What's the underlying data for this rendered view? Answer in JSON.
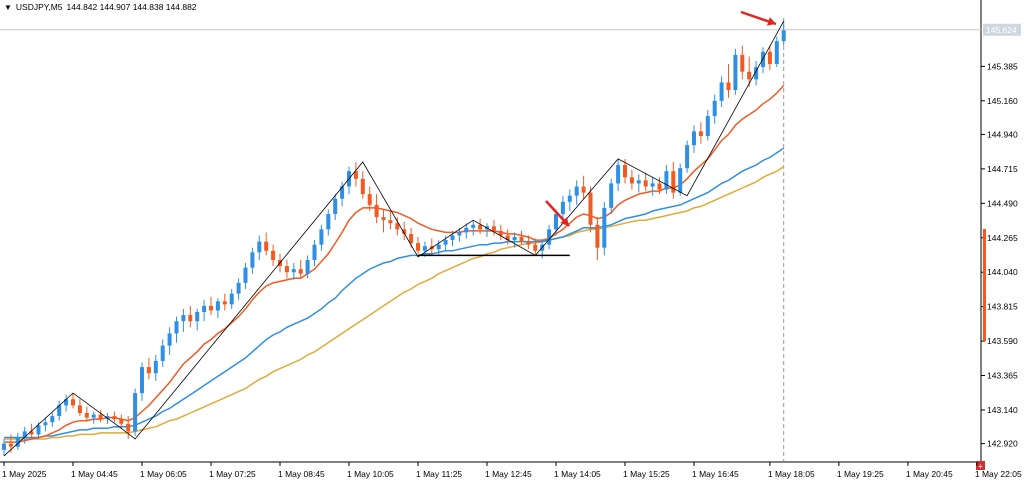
{
  "header": {
    "symbol": "USDJPY,M5",
    "ohlc": "144.842 144.907 144.838 144.882"
  },
  "colors": {
    "bull": "#2e8fe5",
    "bear": "#f25a22",
    "ema_fast": "#f25a22",
    "ema_mid": "#2e8fe5",
    "ema_slow": "#e2aa38",
    "zigzag": "#000000",
    "arrow": "#e52420",
    "price_label_bg": "#cfd7e0",
    "pin_bg": "#d32f2f"
  },
  "price_label": "145.624",
  "chart_data": {
    "type": "candlestick",
    "title": "USDJPY,M5",
    "ylim": [
      142.8,
      145.74
    ],
    "y_ticks": [
      "145.385",
      "145.160",
      "144.940",
      "144.715",
      "144.490",
      "144.265",
      "144.040",
      "143.815",
      "143.590",
      "143.365",
      "143.140",
      "142.920"
    ],
    "x_ticks": [
      "1 May 2025",
      "1 May 04:45",
      "1 May 06:05",
      "1 May 07:25",
      "1 May 08:45",
      "1 May 10:05",
      "1 May 11:25",
      "1 May 12:45",
      "1 May 14:05",
      "1 May 15:25",
      "1 May 16:45",
      "1 May 18:05",
      "1 May 19:25",
      "1 May 20:45",
      "1 May 22:05"
    ],
    "candles": [
      {
        "o": 142.88,
        "h": 142.95,
        "l": 142.84,
        "c": 142.92
      },
      {
        "o": 142.92,
        "h": 142.98,
        "l": 142.86,
        "c": 142.9
      },
      {
        "o": 142.9,
        "h": 142.99,
        "l": 142.88,
        "c": 142.96
      },
      {
        "o": 142.96,
        "h": 143.03,
        "l": 142.92,
        "c": 143.0
      },
      {
        "o": 143.0,
        "h": 143.05,
        "l": 142.96,
        "c": 142.98
      },
      {
        "o": 142.98,
        "h": 143.06,
        "l": 142.95,
        "c": 143.04
      },
      {
        "o": 143.04,
        "h": 143.09,
        "l": 143.0,
        "c": 143.06
      },
      {
        "o": 143.06,
        "h": 143.12,
        "l": 143.03,
        "c": 143.1
      },
      {
        "o": 143.1,
        "h": 143.2,
        "l": 143.07,
        "c": 143.17
      },
      {
        "o": 143.17,
        "h": 143.24,
        "l": 143.13,
        "c": 143.21
      },
      {
        "o": 143.21,
        "h": 143.25,
        "l": 143.15,
        "c": 143.17
      },
      {
        "o": 143.17,
        "h": 143.21,
        "l": 143.1,
        "c": 143.12
      },
      {
        "o": 143.12,
        "h": 143.16,
        "l": 143.07,
        "c": 143.09
      },
      {
        "o": 143.09,
        "h": 143.13,
        "l": 143.05,
        "c": 143.11
      },
      {
        "o": 143.11,
        "h": 143.14,
        "l": 143.06,
        "c": 143.08
      },
      {
        "o": 143.08,
        "h": 143.12,
        "l": 143.05,
        "c": 143.1
      },
      {
        "o": 143.1,
        "h": 143.13,
        "l": 143.06,
        "c": 143.08
      },
      {
        "o": 143.08,
        "h": 143.11,
        "l": 143.02,
        "c": 143.05
      },
      {
        "o": 143.05,
        "h": 143.1,
        "l": 142.95,
        "c": 143.0
      },
      {
        "o": 143.0,
        "h": 143.28,
        "l": 142.97,
        "c": 143.25
      },
      {
        "o": 143.25,
        "h": 143.45,
        "l": 143.2,
        "c": 143.42
      },
      {
        "o": 143.42,
        "h": 143.48,
        "l": 143.34,
        "c": 143.38
      },
      {
        "o": 143.38,
        "h": 143.5,
        "l": 143.33,
        "c": 143.46
      },
      {
        "o": 143.46,
        "h": 143.6,
        "l": 143.42,
        "c": 143.56
      },
      {
        "o": 143.56,
        "h": 143.68,
        "l": 143.5,
        "c": 143.64
      },
      {
        "o": 143.64,
        "h": 143.75,
        "l": 143.58,
        "c": 143.72
      },
      {
        "o": 143.72,
        "h": 143.8,
        "l": 143.65,
        "c": 143.76
      },
      {
        "o": 143.76,
        "h": 143.82,
        "l": 143.68,
        "c": 143.72
      },
      {
        "o": 143.72,
        "h": 143.8,
        "l": 143.66,
        "c": 143.78
      },
      {
        "o": 143.78,
        "h": 143.86,
        "l": 143.72,
        "c": 143.82
      },
      {
        "o": 143.82,
        "h": 143.88,
        "l": 143.76,
        "c": 143.79
      },
      {
        "o": 143.79,
        "h": 143.87,
        "l": 143.74,
        "c": 143.85
      },
      {
        "o": 143.85,
        "h": 143.9,
        "l": 143.79,
        "c": 143.83
      },
      {
        "o": 143.83,
        "h": 143.93,
        "l": 143.8,
        "c": 143.9
      },
      {
        "o": 143.9,
        "h": 144.0,
        "l": 143.86,
        "c": 143.97
      },
      {
        "o": 143.97,
        "h": 144.1,
        "l": 143.93,
        "c": 144.07
      },
      {
        "o": 144.07,
        "h": 144.2,
        "l": 144.03,
        "c": 144.17
      },
      {
        "o": 144.17,
        "h": 144.28,
        "l": 144.12,
        "c": 144.24
      },
      {
        "o": 144.24,
        "h": 144.3,
        "l": 144.15,
        "c": 144.18
      },
      {
        "o": 144.18,
        "h": 144.22,
        "l": 144.08,
        "c": 144.12
      },
      {
        "o": 144.12,
        "h": 144.16,
        "l": 144.04,
        "c": 144.08
      },
      {
        "o": 144.08,
        "h": 144.12,
        "l": 144.0,
        "c": 144.04
      },
      {
        "o": 144.04,
        "h": 144.1,
        "l": 143.99,
        "c": 144.06
      },
      {
        "o": 144.06,
        "h": 144.12,
        "l": 144.0,
        "c": 144.03
      },
      {
        "o": 144.03,
        "h": 144.15,
        "l": 144.0,
        "c": 144.12
      },
      {
        "o": 144.12,
        "h": 144.25,
        "l": 144.08,
        "c": 144.22
      },
      {
        "o": 144.22,
        "h": 144.35,
        "l": 144.18,
        "c": 144.32
      },
      {
        "o": 144.32,
        "h": 144.45,
        "l": 144.28,
        "c": 144.42
      },
      {
        "o": 144.42,
        "h": 144.55,
        "l": 144.38,
        "c": 144.52
      },
      {
        "o": 144.52,
        "h": 144.63,
        "l": 144.47,
        "c": 144.6
      },
      {
        "o": 144.6,
        "h": 144.73,
        "l": 144.55,
        "c": 144.7
      },
      {
        "o": 144.7,
        "h": 144.76,
        "l": 144.6,
        "c": 144.65
      },
      {
        "o": 144.65,
        "h": 144.7,
        "l": 144.52,
        "c": 144.55
      },
      {
        "o": 144.55,
        "h": 144.6,
        "l": 144.44,
        "c": 144.48
      },
      {
        "o": 144.48,
        "h": 144.55,
        "l": 144.36,
        "c": 144.4
      },
      {
        "o": 144.4,
        "h": 144.45,
        "l": 144.3,
        "c": 144.38
      },
      {
        "o": 144.38,
        "h": 144.44,
        "l": 144.32,
        "c": 144.36
      },
      {
        "o": 144.36,
        "h": 144.4,
        "l": 144.28,
        "c": 144.32
      },
      {
        "o": 144.32,
        "h": 144.37,
        "l": 144.25,
        "c": 144.29
      },
      {
        "o": 144.29,
        "h": 144.33,
        "l": 144.2,
        "c": 144.23
      },
      {
        "o": 144.23,
        "h": 144.27,
        "l": 144.16,
        "c": 144.18
      },
      {
        "o": 144.18,
        "h": 144.24,
        "l": 144.14,
        "c": 144.21
      },
      {
        "o": 144.21,
        "h": 144.26,
        "l": 144.15,
        "c": 144.19
      },
      {
        "o": 144.19,
        "h": 144.25,
        "l": 144.15,
        "c": 144.22
      },
      {
        "o": 144.22,
        "h": 144.28,
        "l": 144.18,
        "c": 144.25
      },
      {
        "o": 144.25,
        "h": 144.31,
        "l": 144.21,
        "c": 144.28
      },
      {
        "o": 144.28,
        "h": 144.33,
        "l": 144.24,
        "c": 144.3
      },
      {
        "o": 144.3,
        "h": 144.36,
        "l": 144.26,
        "c": 144.33
      },
      {
        "o": 144.33,
        "h": 144.38,
        "l": 144.28,
        "c": 144.35
      },
      {
        "o": 144.35,
        "h": 144.39,
        "l": 144.29,
        "c": 144.32
      },
      {
        "o": 144.32,
        "h": 144.36,
        "l": 144.27,
        "c": 144.34
      },
      {
        "o": 144.34,
        "h": 144.38,
        "l": 144.28,
        "c": 144.31
      },
      {
        "o": 144.31,
        "h": 144.35,
        "l": 144.25,
        "c": 144.28
      },
      {
        "o": 144.28,
        "h": 144.32,
        "l": 144.22,
        "c": 144.25
      },
      {
        "o": 144.25,
        "h": 144.3,
        "l": 144.2,
        "c": 144.27
      },
      {
        "o": 144.27,
        "h": 144.31,
        "l": 144.22,
        "c": 144.24
      },
      {
        "o": 144.24,
        "h": 144.28,
        "l": 144.19,
        "c": 144.22
      },
      {
        "o": 144.22,
        "h": 144.26,
        "l": 144.15,
        "c": 144.18
      },
      {
        "o": 144.18,
        "h": 144.25,
        "l": 144.13,
        "c": 144.22
      },
      {
        "o": 144.22,
        "h": 144.35,
        "l": 144.19,
        "c": 144.32
      },
      {
        "o": 144.32,
        "h": 144.45,
        "l": 144.28,
        "c": 144.42
      },
      {
        "o": 144.42,
        "h": 144.54,
        "l": 144.38,
        "c": 144.5
      },
      {
        "o": 144.5,
        "h": 144.58,
        "l": 144.44,
        "c": 144.54
      },
      {
        "o": 144.54,
        "h": 144.64,
        "l": 144.48,
        "c": 144.6
      },
      {
        "o": 144.6,
        "h": 144.67,
        "l": 144.52,
        "c": 144.56
      },
      {
        "o": 144.56,
        "h": 144.6,
        "l": 144.3,
        "c": 144.35
      },
      {
        "o": 144.35,
        "h": 144.4,
        "l": 144.12,
        "c": 144.2
      },
      {
        "o": 144.2,
        "h": 144.5,
        "l": 144.15,
        "c": 144.46
      },
      {
        "o": 144.46,
        "h": 144.65,
        "l": 144.42,
        "c": 144.62
      },
      {
        "o": 144.62,
        "h": 144.78,
        "l": 144.57,
        "c": 144.74
      },
      {
        "o": 144.74,
        "h": 144.78,
        "l": 144.62,
        "c": 144.66
      },
      {
        "o": 144.66,
        "h": 144.71,
        "l": 144.58,
        "c": 144.62
      },
      {
        "o": 144.62,
        "h": 144.68,
        "l": 144.56,
        "c": 144.64
      },
      {
        "o": 144.64,
        "h": 144.69,
        "l": 144.57,
        "c": 144.6
      },
      {
        "o": 144.6,
        "h": 144.66,
        "l": 144.54,
        "c": 144.62
      },
      {
        "o": 144.62,
        "h": 144.66,
        "l": 144.55,
        "c": 144.58
      },
      {
        "o": 144.58,
        "h": 144.74,
        "l": 144.55,
        "c": 144.7
      },
      {
        "o": 144.7,
        "h": 144.76,
        "l": 144.52,
        "c": 144.56
      },
      {
        "o": 144.56,
        "h": 144.75,
        "l": 144.54,
        "c": 144.72
      },
      {
        "o": 144.72,
        "h": 144.9,
        "l": 144.69,
        "c": 144.87
      },
      {
        "o": 144.87,
        "h": 145.0,
        "l": 144.82,
        "c": 144.96
      },
      {
        "o": 144.96,
        "h": 145.02,
        "l": 144.88,
        "c": 144.93
      },
      {
        "o": 144.93,
        "h": 145.1,
        "l": 144.9,
        "c": 145.06
      },
      {
        "o": 145.06,
        "h": 145.2,
        "l": 145.01,
        "c": 145.16
      },
      {
        "o": 145.16,
        "h": 145.32,
        "l": 145.12,
        "c": 145.28
      },
      {
        "o": 145.28,
        "h": 145.4,
        "l": 145.18,
        "c": 145.23
      },
      {
        "o": 145.23,
        "h": 145.5,
        "l": 145.2,
        "c": 145.46
      },
      {
        "o": 145.46,
        "h": 145.52,
        "l": 145.3,
        "c": 145.35
      },
      {
        "o": 145.35,
        "h": 145.45,
        "l": 145.25,
        "c": 145.3
      },
      {
        "o": 145.3,
        "h": 145.42,
        "l": 145.26,
        "c": 145.38
      },
      {
        "o": 145.38,
        "h": 145.51,
        "l": 145.34,
        "c": 145.48
      },
      {
        "o": 145.48,
        "h": 145.52,
        "l": 145.36,
        "c": 145.4
      },
      {
        "o": 145.4,
        "h": 145.58,
        "l": 145.38,
        "c": 145.55
      },
      {
        "o": 145.55,
        "h": 145.68,
        "l": 145.52,
        "c": 145.62
      }
    ],
    "ema_fast": [
      142.93,
      142.93,
      142.93,
      142.94,
      142.95,
      142.96,
      142.97,
      142.99,
      143.01,
      143.04,
      143.06,
      143.07,
      143.07,
      143.08,
      143.08,
      143.09,
      143.09,
      143.08,
      143.07,
      143.09,
      143.13,
      143.17,
      143.22,
      143.27,
      143.32,
      143.38,
      143.44,
      143.48,
      143.52,
      143.57,
      143.6,
      143.64,
      143.67,
      143.71,
      143.75,
      143.8,
      143.86,
      143.91,
      143.95,
      143.97,
      143.98,
      143.99,
      144.0,
      144.0,
      144.03,
      144.06,
      144.11,
      144.16,
      144.23,
      144.3,
      144.38,
      144.43,
      144.46,
      144.46,
      144.46,
      144.45,
      144.44,
      144.43,
      144.41,
      144.39,
      144.36,
      144.34,
      144.32,
      144.31,
      144.3,
      144.3,
      144.3,
      144.31,
      144.31,
      144.31,
      144.31,
      144.31,
      144.3,
      144.29,
      144.29,
      144.28,
      144.27,
      144.25,
      144.25,
      144.26,
      144.29,
      144.32,
      144.36,
      144.4,
      144.42,
      144.41,
      144.39,
      144.4,
      144.43,
      144.48,
      144.51,
      144.53,
      144.55,
      144.56,
      144.57,
      144.57,
      144.59,
      144.59,
      144.61,
      144.65,
      144.7,
      144.74,
      144.78,
      144.84,
      144.9,
      144.94,
      145.0,
      145.04,
      145.07,
      145.1,
      145.14,
      145.17,
      145.21,
      145.26
    ],
    "ema_mid": [
      142.96,
      142.96,
      142.96,
      142.96,
      142.96,
      142.96,
      142.97,
      142.97,
      142.98,
      142.99,
      143.0,
      143.01,
      143.01,
      143.02,
      143.02,
      143.02,
      143.03,
      143.03,
      143.03,
      143.04,
      143.06,
      143.08,
      143.1,
      143.13,
      143.15,
      143.18,
      143.21,
      143.24,
      143.27,
      143.3,
      143.33,
      143.36,
      143.39,
      143.42,
      143.45,
      143.48,
      143.52,
      143.56,
      143.6,
      143.63,
      143.65,
      143.68,
      143.7,
      143.72,
      143.74,
      143.77,
      143.8,
      143.84,
      143.87,
      143.92,
      143.96,
      144.0,
      144.03,
      144.06,
      144.08,
      144.1,
      144.11,
      144.13,
      144.14,
      144.15,
      144.15,
      144.16,
      144.16,
      144.17,
      144.18,
      144.18,
      144.19,
      144.2,
      144.21,
      144.22,
      144.22,
      144.23,
      144.23,
      144.24,
      144.24,
      144.24,
      144.24,
      144.24,
      144.24,
      144.25,
      144.26,
      144.27,
      144.29,
      144.31,
      144.33,
      144.33,
      144.33,
      144.34,
      144.35,
      144.37,
      144.39,
      144.4,
      144.41,
      144.42,
      144.44,
      144.45,
      144.46,
      144.47,
      144.48,
      144.5,
      144.52,
      144.54,
      144.56,
      144.59,
      144.62,
      144.64,
      144.67,
      144.7,
      144.72,
      144.74,
      144.77,
      144.79,
      144.82,
      144.85
    ],
    "ema_slow": [
      142.95,
      142.95,
      142.95,
      142.95,
      142.95,
      142.95,
      142.95,
      142.96,
      142.96,
      142.97,
      142.97,
      142.98,
      142.98,
      142.98,
      142.99,
      142.99,
      142.99,
      142.99,
      142.99,
      143.0,
      143.01,
      143.02,
      143.03,
      143.05,
      143.07,
      143.08,
      143.1,
      143.12,
      143.14,
      143.16,
      143.18,
      143.2,
      143.22,
      143.24,
      143.26,
      143.28,
      143.31,
      143.34,
      143.36,
      143.39,
      143.41,
      143.43,
      143.45,
      143.47,
      143.5,
      143.52,
      143.55,
      143.58,
      143.61,
      143.64,
      143.67,
      143.7,
      143.73,
      143.76,
      143.79,
      143.82,
      143.85,
      143.88,
      143.91,
      143.93,
      143.96,
      143.98,
      144.0,
      144.03,
      144.05,
      144.07,
      144.09,
      144.11,
      144.13,
      144.14,
      144.16,
      144.17,
      144.19,
      144.2,
      144.21,
      144.22,
      144.23,
      144.23,
      144.24,
      144.25,
      144.26,
      144.27,
      144.28,
      144.3,
      144.31,
      144.32,
      144.32,
      144.33,
      144.34,
      144.35,
      144.36,
      144.37,
      144.38,
      144.38,
      144.39,
      144.4,
      144.41,
      144.42,
      144.43,
      144.44,
      144.46,
      144.47,
      144.49,
      144.51,
      144.53,
      144.55,
      144.57,
      144.59,
      144.61,
      144.63,
      144.66,
      144.68,
      144.7,
      144.73
    ],
    "zigzag": [
      [
        0,
        142.84
      ],
      [
        10,
        143.25
      ],
      [
        17,
        143.02
      ],
      [
        19,
        142.95
      ],
      [
        52,
        144.76
      ],
      [
        60,
        144.14
      ],
      [
        68,
        144.38
      ],
      [
        77,
        144.15
      ],
      [
        89,
        144.78
      ],
      [
        99,
        144.54
      ],
      [
        113,
        145.68
      ]
    ],
    "support_line": {
      "from": 60,
      "to": 82,
      "price": 144.15
    }
  }
}
